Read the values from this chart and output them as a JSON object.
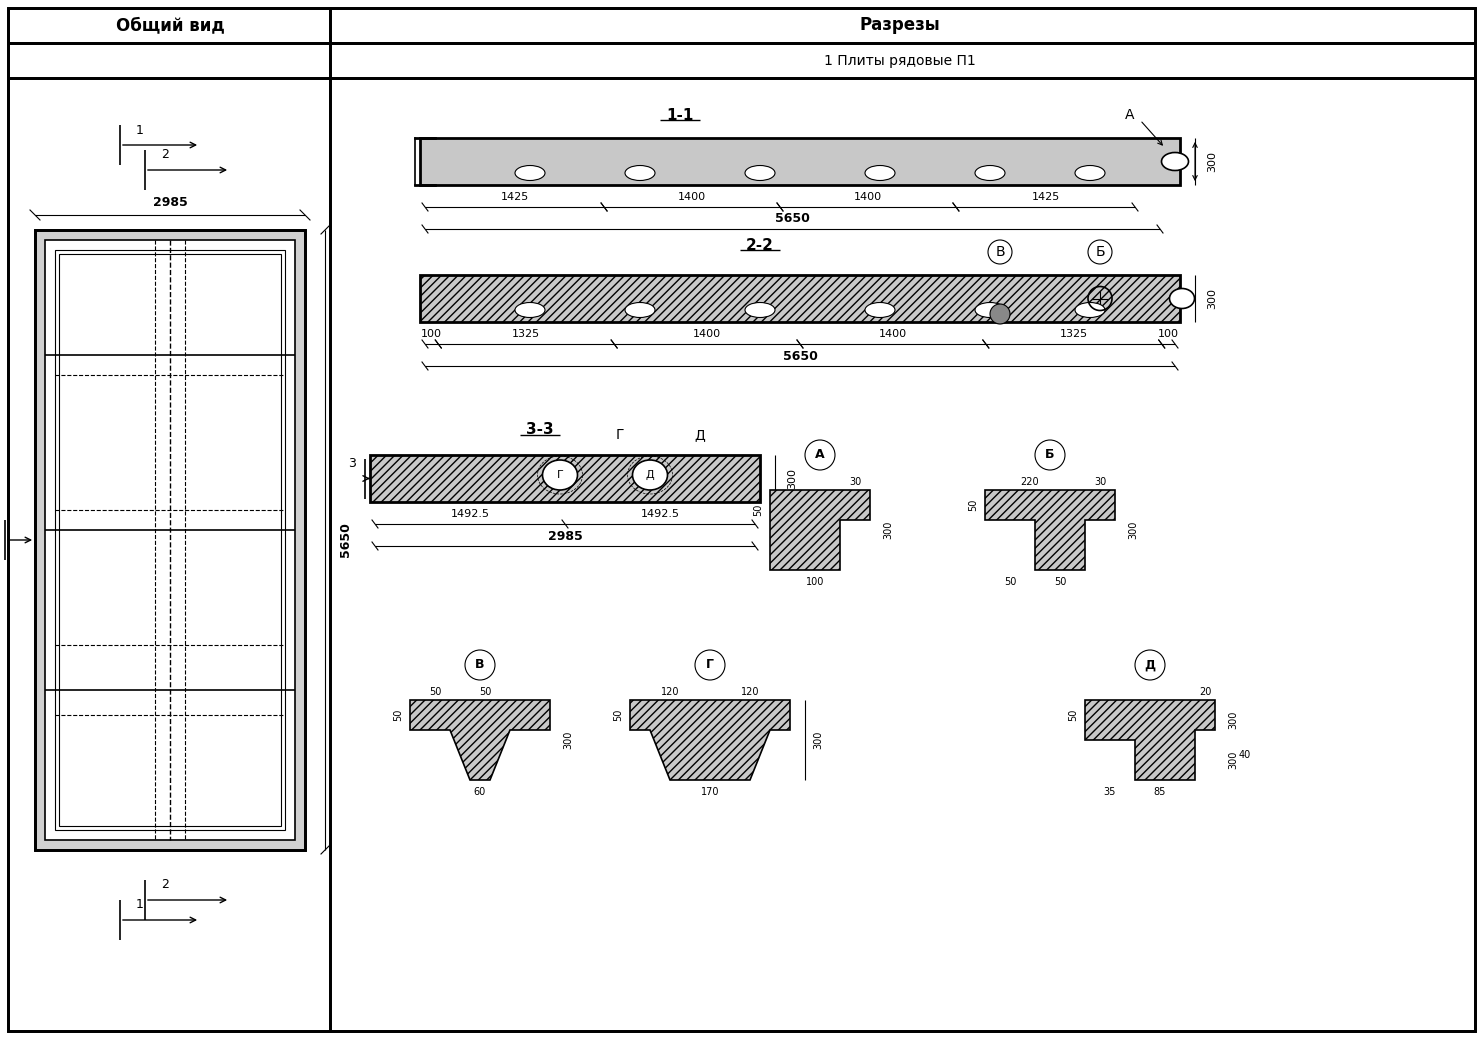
{
  "title_left": "Общий вид",
  "title_right": "Разрезы",
  "subtitle": "1 Плиты рядовые П1",
  "bg_color": "#ffffff",
  "line_color": "#000000",
  "hatch_color": "#000000",
  "figsize": [
    14.83,
    10.39
  ],
  "dpi": 100
}
